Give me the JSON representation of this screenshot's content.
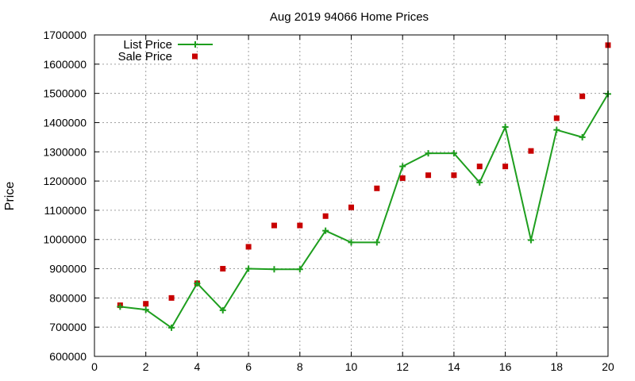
{
  "chart_data": {
    "type": "line",
    "title": "Aug 2019 94066 Home Prices",
    "xlabel": "",
    "ylabel": "Price",
    "xlim": [
      0,
      20
    ],
    "ylim": [
      600000,
      1700000
    ],
    "x_ticks": [
      0,
      2,
      4,
      6,
      8,
      10,
      12,
      14,
      16,
      18,
      20
    ],
    "y_ticks": [
      600000,
      700000,
      800000,
      900000,
      1000000,
      1100000,
      1200000,
      1300000,
      1400000,
      1500000,
      1600000,
      1700000
    ],
    "grid": true,
    "legend_position": "top-left",
    "series": [
      {
        "name": "List Price",
        "style": "line+cross-marker",
        "color": "#1e9e1e",
        "x": [
          1,
          2,
          3,
          4,
          5,
          6,
          7,
          8,
          9,
          10,
          11,
          12,
          13,
          14,
          15,
          16,
          17,
          18,
          19,
          20
        ],
        "values": [
          770000,
          760000,
          698000,
          850000,
          758000,
          900000,
          898000,
          898000,
          1030000,
          990000,
          990000,
          1250000,
          1295000,
          1295000,
          1195000,
          1385000,
          998000,
          1375000,
          1350000,
          1498000
        ]
      },
      {
        "name": "Sale Price",
        "style": "square-marker",
        "color": "#c80000",
        "x": [
          1,
          2,
          3,
          4,
          5,
          6,
          7,
          8,
          9,
          10,
          11,
          12,
          13,
          14,
          15,
          16,
          17,
          18,
          19,
          20
        ],
        "values": [
          775000,
          780000,
          800000,
          850000,
          900000,
          975000,
          1048000,
          1048000,
          1080000,
          1110000,
          1175000,
          1210000,
          1220000,
          1220000,
          1250000,
          1250000,
          1303000,
          1415000,
          1490000,
          1665000
        ]
      }
    ]
  }
}
